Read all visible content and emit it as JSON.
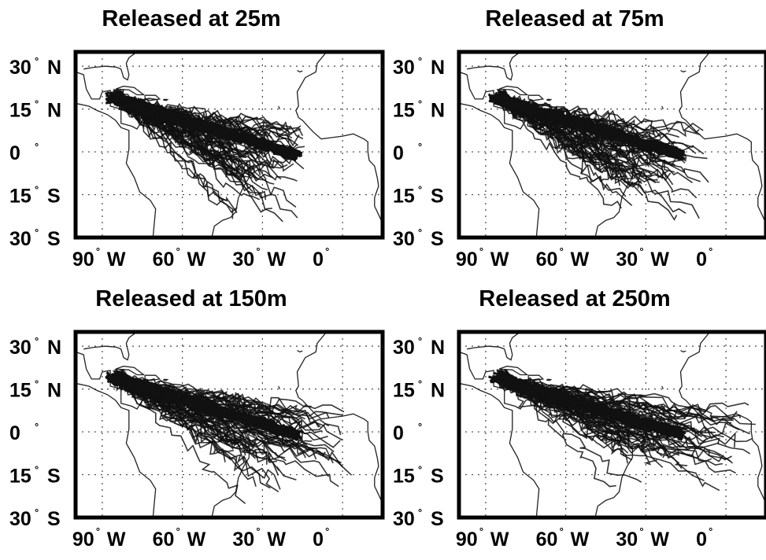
{
  "panels": [
    {
      "id": "p25",
      "title": "Released at 25m",
      "spread": 0.55,
      "south": 0.55,
      "seed": 11
    },
    {
      "id": "p75",
      "title": "Released at 75m",
      "spread": 0.7,
      "south": 1.0,
      "seed": 23
    },
    {
      "id": "p150",
      "title": "Released at 150m",
      "spread": 0.85,
      "south": 0.35,
      "seed": 37
    },
    {
      "id": "p250",
      "title": "Released at 250m",
      "spread": 1.0,
      "south": 0.25,
      "seed": 51
    }
  ],
  "y_ticks": [
    {
      "lat": 30,
      "num": "30",
      "hemi": "N"
    },
    {
      "lat": 15,
      "num": "15",
      "hemi": "N"
    },
    {
      "lat": 0,
      "num": "0",
      "hemi": ""
    },
    {
      "lat": -15,
      "num": "15",
      "hemi": "S"
    },
    {
      "lat": -30,
      "num": "30",
      "hemi": "S"
    }
  ],
  "x_ticks": [
    {
      "lon": -90,
      "num": "90",
      "hemi": "W"
    },
    {
      "lon": -60,
      "num": "60",
      "hemi": "W"
    },
    {
      "lon": -30,
      "num": "30",
      "hemi": "W"
    },
    {
      "lon": 0,
      "num": "0",
      "hemi": ""
    }
  ],
  "colors": {
    "trajectory": "#111111",
    "coast": "#222222",
    "grid": "#444444",
    "frame": "#000000"
  }
}
